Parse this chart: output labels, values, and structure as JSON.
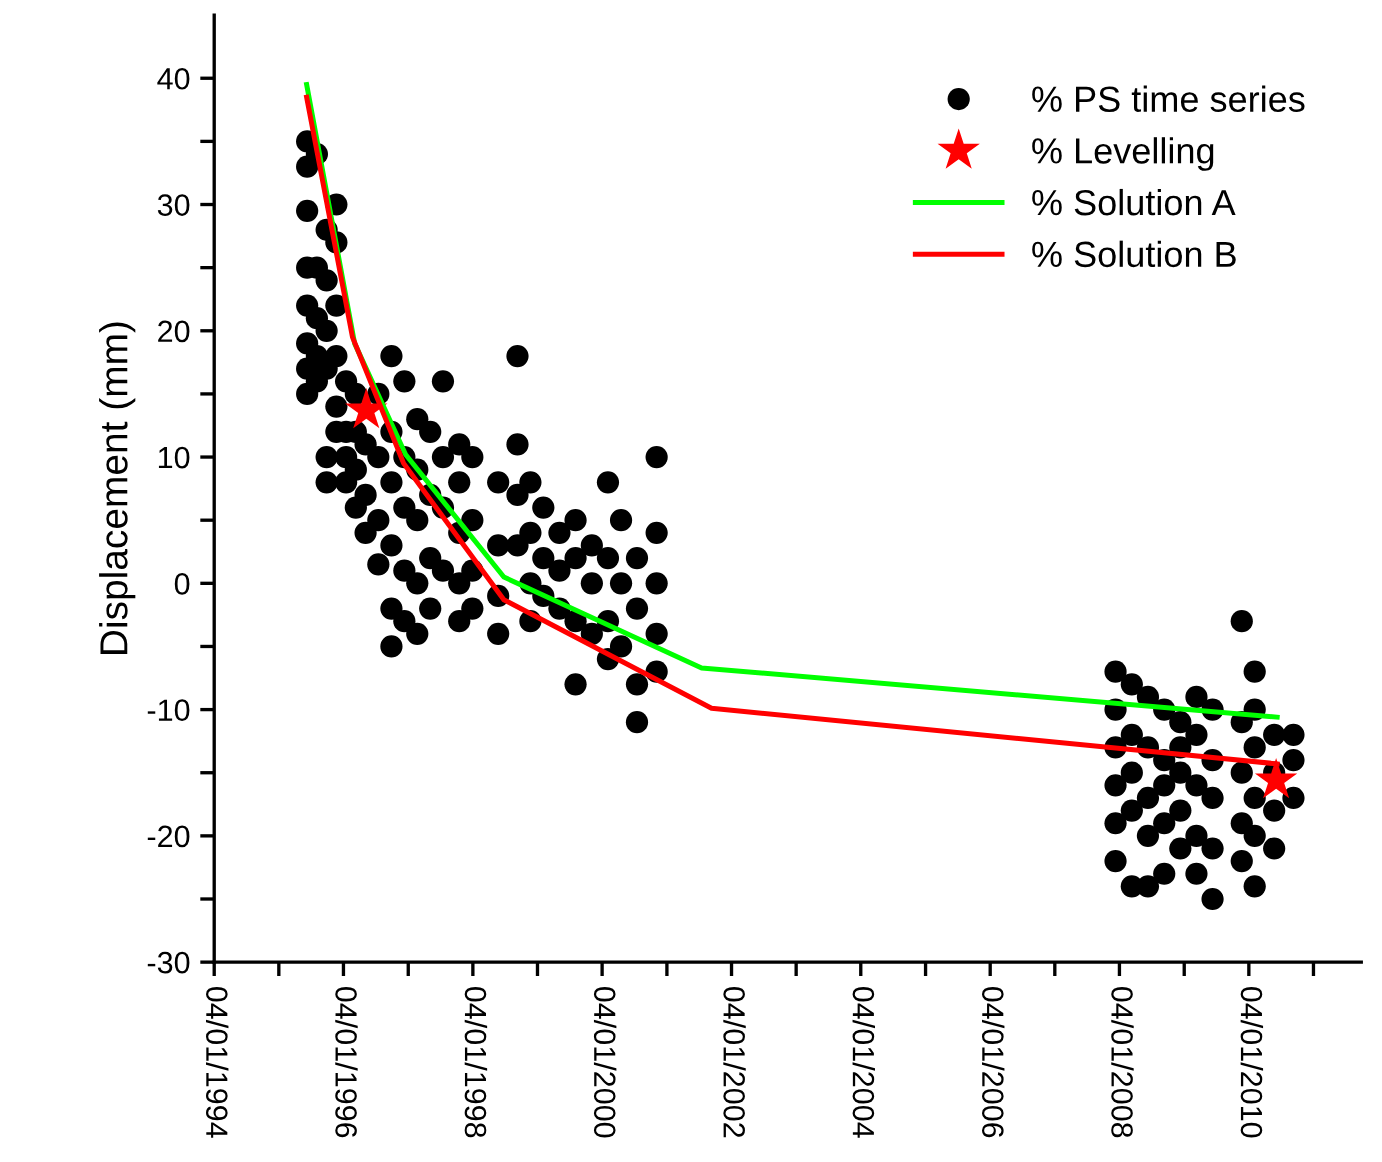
{
  "chart_data": {
    "type": "scatter",
    "ylabel": "Displacement (mm)",
    "xlim": [
      "1994-01-04",
      "2011-10-01"
    ],
    "ylim": [
      -30,
      45
    ],
    "xticks": [
      {
        "value": "1994-01-04",
        "label": "04/01/1994"
      },
      {
        "value": "1995-01-04",
        "label": null
      },
      {
        "value": "1996-01-04",
        "label": "04/01/1996"
      },
      {
        "value": "1997-01-04",
        "label": null
      },
      {
        "value": "1998-01-04",
        "label": "04/01/1998"
      },
      {
        "value": "1999-01-04",
        "label": null
      },
      {
        "value": "2000-01-04",
        "label": "04/01/2000"
      },
      {
        "value": "2001-01-04",
        "label": null
      },
      {
        "value": "2002-01-04",
        "label": "04/01/2002"
      },
      {
        "value": "2003-01-04",
        "label": null
      },
      {
        "value": "2004-01-04",
        "label": "04/01/2004"
      },
      {
        "value": "2005-01-04",
        "label": null
      },
      {
        "value": "2006-01-04",
        "label": "04/01/2006"
      },
      {
        "value": "2007-01-04",
        "label": null
      },
      {
        "value": "2008-01-04",
        "label": "04/01/2008"
      },
      {
        "value": "2009-01-04",
        "label": null
      },
      {
        "value": "2010-01-04",
        "label": "04/01/2010"
      },
      {
        "value": "2011-01-04",
        "label": null
      }
    ],
    "yticks": [
      -30,
      {
        "value": -25,
        "label": null
      },
      -20,
      {
        "value": -15,
        "label": null
      },
      -10,
      {
        "value": -5,
        "label": null
      },
      0,
      {
        "value": 5,
        "label": null
      },
      10,
      {
        "value": 15,
        "label": null
      },
      20,
      {
        "value": 25,
        "label": null
      },
      30,
      {
        "value": 35,
        "label": null
      },
      40
    ],
    "grid": false,
    "legend": "top right",
    "series": [
      {
        "name": "% PS time series",
        "marker": "circle",
        "color": "#000000",
        "x": [
          "1995-06-13",
          "1995-06-13",
          "1995-06-13",
          "1995-06-13",
          "1995-06-13",
          "1995-06-13",
          "1995-06-13",
          "1995-06-13",
          "1995-08-07",
          "1995-08-07",
          "1995-08-07",
          "1995-08-07",
          "1995-08-07",
          "1995-10-01",
          "1995-10-01",
          "1995-10-01",
          "1995-10-01",
          "1995-10-01",
          "1995-10-01",
          "1995-11-25",
          "1995-11-25",
          "1995-11-25",
          "1995-11-25",
          "1995-11-25",
          "1995-11-25",
          "1996-01-19",
          "1996-01-19",
          "1996-01-19",
          "1996-01-19",
          "1996-03-14",
          "1996-03-14",
          "1996-03-14",
          "1996-03-14",
          "1996-05-08",
          "1996-05-08",
          "1996-05-08",
          "1996-07-19",
          "1996-07-19",
          "1996-07-19",
          "1996-07-19",
          "1996-10-01",
          "1996-10-01",
          "1996-10-01",
          "1996-10-01",
          "1996-10-01",
          "1996-10-01",
          "1996-12-13",
          "1996-12-13",
          "1996-12-13",
          "1996-12-13",
          "1996-12-13",
          "1997-02-24",
          "1997-02-24",
          "1997-02-24",
          "1997-02-24",
          "1997-02-24",
          "1997-05-08",
          "1997-05-08",
          "1997-05-08",
          "1997-05-08",
          "1997-07-19",
          "1997-07-19",
          "1997-07-19",
          "1997-07-19",
          "1997-10-19",
          "1997-10-19",
          "1997-10-19",
          "1997-10-19",
          "1997-10-19",
          "1998-01-01",
          "1998-01-01",
          "1998-01-01",
          "1998-01-01",
          "1998-05-27",
          "1998-05-27",
          "1998-05-27",
          "1998-05-27",
          "1998-09-13",
          "1998-09-13",
          "1998-09-13",
          "1998-09-13",
          "1998-11-25",
          "1998-11-25",
          "1998-11-25",
          "1998-11-25",
          "1999-02-06",
          "1999-02-06",
          "1999-02-06",
          "1999-05-08",
          "1999-05-08",
          "1999-05-08",
          "1999-08-07",
          "1999-08-07",
          "1999-08-07",
          "1999-08-07",
          "1999-11-07",
          "1999-11-07",
          "1999-11-07",
          "2000-02-06",
          "2000-02-06",
          "2000-02-06",
          "2000-02-06",
          "2000-04-20",
          "2000-04-20",
          "2000-04-20",
          "2000-07-19",
          "2000-07-19",
          "2000-07-19",
          "2000-07-19",
          "2000-11-07",
          "2000-11-07",
          "2000-11-07",
          "2000-11-07",
          "2000-11-07",
          "2007-12-13",
          "2007-12-13",
          "2007-12-13",
          "2007-12-13",
          "2007-12-13",
          "2007-12-13",
          "2008-03-14",
          "2008-03-14",
          "2008-03-14",
          "2008-03-14",
          "2008-03-14",
          "2008-06-13",
          "2008-06-13",
          "2008-06-13",
          "2008-06-13",
          "2008-06-13",
          "2008-09-13",
          "2008-09-13",
          "2008-09-13",
          "2008-09-13",
          "2008-09-13",
          "2008-12-13",
          "2008-12-13",
          "2008-12-13",
          "2008-12-13",
          "2008-12-13",
          "2009-03-14",
          "2009-03-14",
          "2009-03-14",
          "2009-03-14",
          "2009-03-14",
          "2009-06-13",
          "2009-06-13",
          "2009-06-13",
          "2009-06-13",
          "2009-06-13",
          "2009-11-25",
          "2009-11-25",
          "2009-11-25",
          "2009-11-25",
          "2009-11-25",
          "2010-02-06",
          "2010-02-06",
          "2010-02-06",
          "2010-02-06",
          "2010-02-06",
          "2010-02-06",
          "2010-05-27",
          "2010-05-27",
          "2010-05-27",
          "2010-05-27",
          "2010-09-13",
          "2010-09-13",
          "2010-09-13"
        ],
        "values": [
          35,
          33,
          29.5,
          25,
          22,
          19,
          17,
          15,
          34,
          25,
          21,
          18,
          16,
          28,
          24,
          20,
          17,
          10,
          8,
          30,
          27,
          22,
          18,
          14,
          12,
          16,
          12,
          10,
          8,
          15,
          12,
          9,
          6,
          11,
          7,
          4,
          15,
          10,
          5,
          1.5,
          18,
          12,
          8,
          3,
          -2,
          -5,
          16,
          10,
          6,
          1,
          -3,
          13,
          9,
          5,
          0,
          -4,
          12,
          7,
          2,
          -2,
          16,
          10,
          6,
          1,
          11,
          8,
          4,
          0,
          -3,
          10,
          5,
          1,
          -2,
          8,
          3,
          -1,
          -4,
          18,
          11,
          7,
          3,
          8,
          4,
          0,
          -3,
          6,
          2,
          -1,
          4,
          1,
          -2,
          5,
          2,
          -3,
          -8,
          3,
          0,
          -4,
          8,
          2,
          -3,
          -6,
          5,
          0,
          -5,
          2,
          -2,
          -8,
          -11,
          10,
          4,
          0,
          -4,
          -7,
          -7,
          -10,
          -13,
          -16,
          -19,
          -22,
          -8,
          -12,
          -15,
          -18,
          -24,
          -9,
          -13,
          -17,
          -20,
          -24,
          -10,
          -14,
          -16,
          -19,
          -23,
          -11,
          -13,
          -15,
          -18,
          -21,
          -9,
          -12,
          -16,
          -20,
          -23,
          -10,
          -14,
          -17,
          -21,
          -25,
          -3,
          -11,
          -15,
          -19,
          -22,
          -7,
          -10,
          -13,
          -17,
          -20,
          -24,
          -12,
          -15,
          -18,
          -21,
          -12,
          -14,
          -17
        ]
      },
      {
        "name": "% Levelling",
        "marker": "star",
        "color": "#ff0000",
        "x": [
          "1996-05-12",
          "2010-06-07"
        ],
        "values": [
          13.7,
          -15.6
        ]
      },
      {
        "name": "% Solution A",
        "type": "line",
        "marker": "none",
        "line_style": "solid",
        "color": "#00ff00",
        "x": [
          "1995-06-10",
          "1996-03-07",
          "1996-12-20",
          "1998-06-28",
          "2001-07-19",
          "2010-06-13"
        ],
        "values": [
          39.5,
          19.0,
          10.2,
          0.5,
          -6.7,
          -10.6
        ]
      },
      {
        "name": "% Solution B",
        "type": "line",
        "marker": "none",
        "line_style": "solid",
        "color": "#ff0000",
        "x": [
          "1995-06-10",
          "1996-02-24",
          "1996-12-09",
          "1998-06-28",
          "2001-09-13",
          "2010-06-13"
        ],
        "values": [
          38.5,
          19.5,
          9.5,
          -1.3,
          -9.9,
          -14.3
        ]
      }
    ]
  }
}
